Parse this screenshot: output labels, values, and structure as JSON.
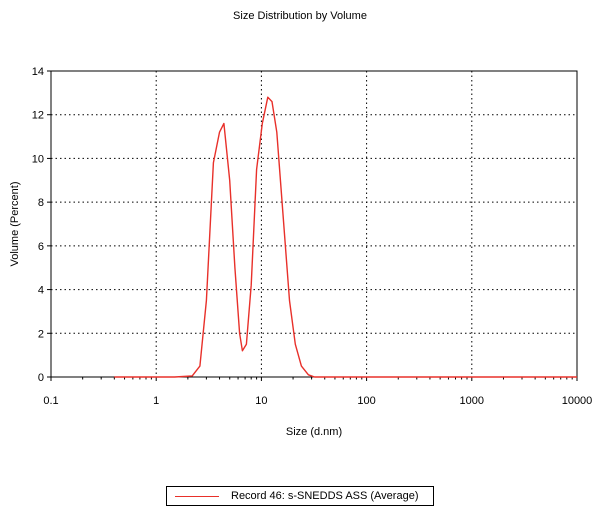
{
  "chart_data": {
    "type": "line",
    "title": "Size Distribution by Volume",
    "xlabel": "Size (d.nm)",
    "ylabel": "Volume (Percent)",
    "x_scale": "log",
    "xlim": [
      0.1,
      10000
    ],
    "ylim": [
      0,
      14
    ],
    "x_ticks": [
      0.1,
      1,
      10,
      100,
      1000,
      10000
    ],
    "x_tick_labels": [
      "0.1",
      "1",
      "10",
      "100",
      "1000",
      "10000"
    ],
    "y_ticks": [
      0,
      2,
      4,
      6,
      8,
      10,
      12,
      14
    ],
    "y_tick_labels": [
      "0",
      "2",
      "4",
      "6",
      "8",
      "10",
      "12",
      "14"
    ],
    "grid": true,
    "legend_position": "bottom",
    "series": [
      {
        "name": "Record 46: s-SNEDDS ASS (Average)",
        "color": "#e8302a",
        "x": [
          0.4,
          1.5,
          2.2,
          2.6,
          3.0,
          3.5,
          4.0,
          4.4,
          5.0,
          5.6,
          6.2,
          6.6,
          7.2,
          8.0,
          9.0,
          10.2,
          11.5,
          12.6,
          14.0,
          16.0,
          18.5,
          21.0,
          24.0,
          28.0,
          32.0,
          50.0,
          100.0,
          1000.0,
          10000.0
        ],
        "y": [
          0,
          0,
          0.05,
          0.5,
          3.5,
          9.8,
          11.2,
          11.6,
          9.0,
          5.0,
          2.0,
          1.2,
          1.5,
          4.2,
          9.5,
          11.6,
          12.8,
          12.6,
          11.2,
          7.5,
          3.5,
          1.5,
          0.5,
          0.1,
          0,
          0,
          0,
          0,
          0
        ]
      }
    ]
  },
  "legend": {
    "label": "Record 46: s-SNEDDS ASS (Average)"
  }
}
